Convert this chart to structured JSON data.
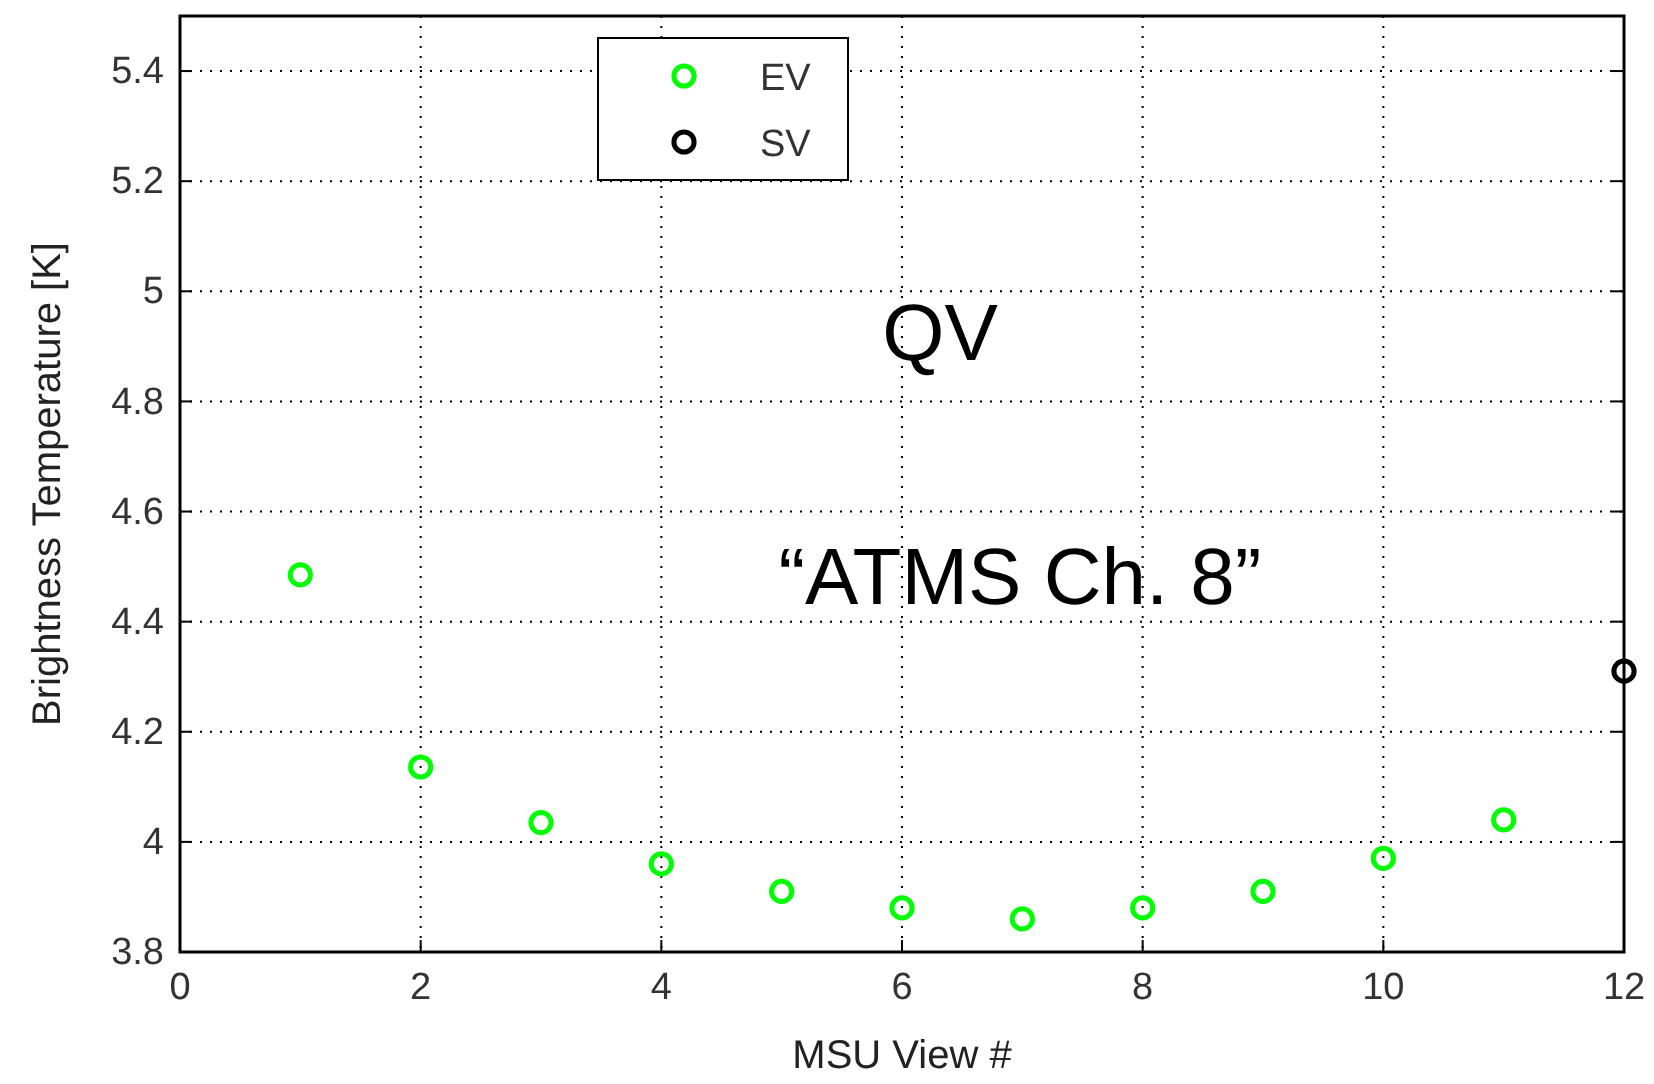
{
  "chart_data": {
    "type": "scatter",
    "xlabel": "MSU View #",
    "ylabel": "Brightness Temperature [K]",
    "xlim": [
      0,
      12
    ],
    "xticks": [
      0,
      2,
      4,
      6,
      8,
      10,
      12
    ],
    "ylim": [
      3.8,
      5.5
    ],
    "yticks": [
      3.8,
      4,
      4.2,
      4.4,
      4.6,
      4.8,
      5,
      5.2,
      5.4
    ],
    "grid": true,
    "legend": "top",
    "marker": "circle",
    "annotations": [
      "QV",
      "“ATMS Ch. 8”"
    ],
    "series": [
      {
        "name": "EV",
        "color": "#00ff00",
        "x": [
          1,
          2,
          3,
          4,
          5,
          6,
          7,
          8,
          9,
          10,
          11
        ],
        "values": [
          4.485,
          4.136,
          4.035,
          3.96,
          3.91,
          3.88,
          3.86,
          3.88,
          3.91,
          3.97,
          4.04
        ]
      },
      {
        "name": "SV",
        "color": "#000000",
        "x": [
          12
        ],
        "values": [
          4.31
        ]
      }
    ]
  }
}
